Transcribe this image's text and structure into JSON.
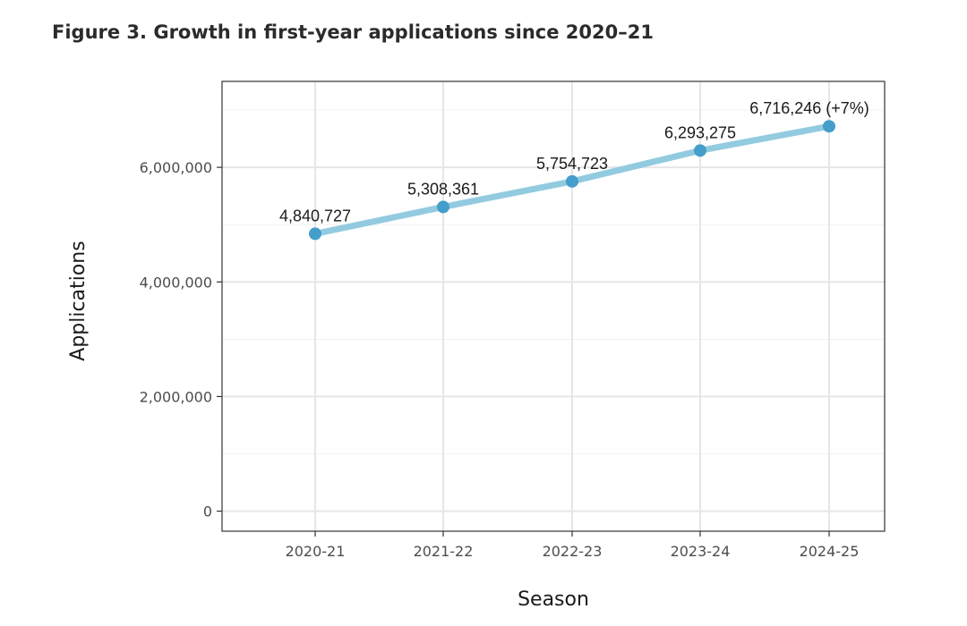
{
  "figure": {
    "title": "Figure 3. Growth in first-year applications since 2020–21"
  },
  "chart_data": {
    "type": "line",
    "title": "Figure 3. Growth in first-year applications since 2020–21",
    "xlabel": "Season",
    "ylabel": "Applications",
    "categories": [
      "2020-21",
      "2021-22",
      "2022-23",
      "2023-24",
      "2024-25"
    ],
    "series": [
      {
        "values": [
          4840727,
          5308361,
          5754723,
          6293275,
          6716246
        ],
        "color": "#92cbe0",
        "point_color": "#449ec9"
      }
    ],
    "data_labels": [
      "4,840,727",
      "5,308,361",
      "5,754,723",
      "6,293,275",
      "6,716,246 (+7%)"
    ],
    "ylim": [
      -350000,
      7500000
    ],
    "yticks": [
      0,
      2000000,
      4000000,
      6000000
    ],
    "ytick_labels": [
      "0",
      "2,000,000",
      "4,000,000",
      "6,000,000"
    ],
    "grid": true,
    "legend": "none"
  }
}
